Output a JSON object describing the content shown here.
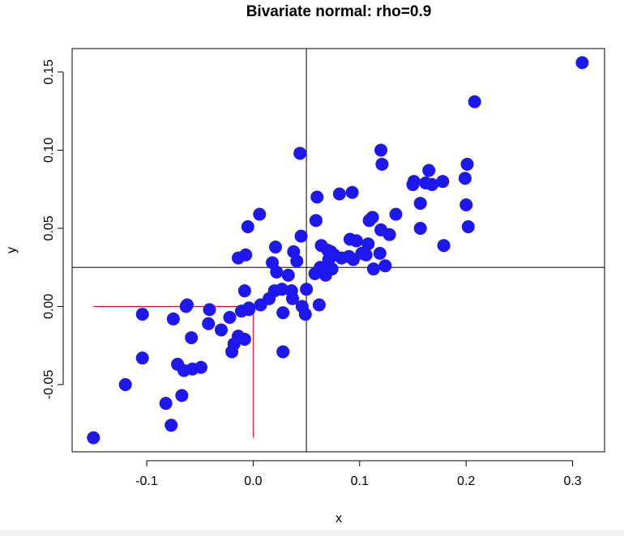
{
  "chart_data": {
    "type": "scatter",
    "title": "Bivariate normal: rho=0.9",
    "xlabel": "x",
    "ylabel": "y",
    "xlim": [
      -0.17,
      0.33
    ],
    "ylim": [
      -0.093,
      0.165
    ],
    "xticks": [
      "-0.1",
      "0.0",
      "0.1",
      "0.2",
      "0.3"
    ],
    "xtick_values": [
      -0.1,
      0.0,
      0.1,
      0.2,
      0.3
    ],
    "yticks": [
      "-0.05",
      "0.00",
      "0.05",
      "0.10",
      "0.15"
    ],
    "ytick_values": [
      -0.05,
      0.0,
      0.05,
      0.1,
      0.15
    ],
    "grid": false,
    "point_color": "#1f17f0",
    "reference_lines": {
      "vertical_black_x": 0.05,
      "horizontal_black_y": 0.025,
      "red_line_color": "#e8001c",
      "red_horizontal": {
        "y": 0.0,
        "x_from": -0.15,
        "x_to": 0.0
      },
      "red_vertical": {
        "x": 0.0,
        "y_from": 0.0,
        "y_to": -0.084
      }
    },
    "points": [
      [
        -0.15,
        -0.084
      ],
      [
        -0.12,
        -0.05
      ],
      [
        -0.104,
        -0.033
      ],
      [
        -0.104,
        -0.005
      ],
      [
        -0.082,
        -0.062
      ],
      [
        -0.077,
        -0.076
      ],
      [
        -0.075,
        -0.008
      ],
      [
        -0.071,
        -0.037
      ],
      [
        -0.067,
        -0.057
      ],
      [
        -0.065,
        -0.041
      ],
      [
        -0.063,
        0.0
      ],
      [
        -0.062,
        0.001
      ],
      [
        -0.058,
        -0.02
      ],
      [
        -0.057,
        -0.04
      ],
      [
        -0.049,
        -0.039
      ],
      [
        -0.042,
        -0.011
      ],
      [
        -0.041,
        -0.002
      ],
      [
        -0.03,
        -0.015
      ],
      [
        -0.022,
        -0.007
      ],
      [
        -0.02,
        -0.029
      ],
      [
        -0.018,
        -0.024
      ],
      [
        -0.014,
        -0.019
      ],
      [
        -0.014,
        0.031
      ],
      [
        -0.011,
        -0.003
      ],
      [
        -0.008,
        -0.021
      ],
      [
        -0.008,
        0.01
      ],
      [
        -0.007,
        0.033
      ],
      [
        -0.005,
        0.051
      ],
      [
        -0.004,
        -0.001
      ],
      [
        -0.004,
        -0.002
      ],
      [
        0.006,
        0.059
      ],
      [
        0.007,
        0.001
      ],
      [
        0.015,
        0.005
      ],
      [
        0.018,
        0.028
      ],
      [
        0.02,
        0.01
      ],
      [
        0.021,
        0.038
      ],
      [
        0.022,
        0.022
      ],
      [
        0.027,
        0.011
      ],
      [
        0.028,
        -0.004
      ],
      [
        0.028,
        -0.029
      ],
      [
        0.033,
        0.02
      ],
      [
        0.036,
        0.01
      ],
      [
        0.037,
        0.005
      ],
      [
        0.038,
        0.035
      ],
      [
        0.041,
        0.029
      ],
      [
        0.044,
        0.098
      ],
      [
        0.045,
        0.045
      ],
      [
        0.046,
        0.0
      ],
      [
        0.049,
        -0.005
      ],
      [
        0.05,
        0.011
      ],
      [
        0.058,
        0.021
      ],
      [
        0.059,
        0.055
      ],
      [
        0.06,
        0.07
      ],
      [
        0.062,
        0.001
      ],
      [
        0.063,
        0.025
      ],
      [
        0.064,
        0.039
      ],
      [
        0.068,
        0.02
      ],
      [
        0.07,
        0.036
      ],
      [
        0.071,
        0.03
      ],
      [
        0.073,
        0.035
      ],
      [
        0.074,
        0.024
      ],
      [
        0.076,
        0.033
      ],
      [
        0.081,
        0.072
      ],
      [
        0.083,
        0.031
      ],
      [
        0.09,
        0.032
      ],
      [
        0.091,
        0.043
      ],
      [
        0.093,
        0.073
      ],
      [
        0.094,
        0.03
      ],
      [
        0.097,
        0.042
      ],
      [
        0.102,
        0.034
      ],
      [
        0.106,
        0.033
      ],
      [
        0.108,
        0.04
      ],
      [
        0.109,
        0.055
      ],
      [
        0.112,
        0.057
      ],
      [
        0.113,
        0.024
      ],
      [
        0.119,
        0.034
      ],
      [
        0.12,
        0.049
      ],
      [
        0.12,
        0.1
      ],
      [
        0.121,
        0.091
      ],
      [
        0.124,
        0.026
      ],
      [
        0.128,
        0.046
      ],
      [
        0.134,
        0.059
      ],
      [
        0.15,
        0.078
      ],
      [
        0.151,
        0.08
      ],
      [
        0.157,
        0.066
      ],
      [
        0.157,
        0.05
      ],
      [
        0.162,
        0.079
      ],
      [
        0.165,
        0.087
      ],
      [
        0.168,
        0.078
      ],
      [
        0.178,
        0.08
      ],
      [
        0.179,
        0.039
      ],
      [
        0.199,
        0.082
      ],
      [
        0.2,
        0.065
      ],
      [
        0.201,
        0.091
      ],
      [
        0.202,
        0.051
      ],
      [
        0.208,
        0.131
      ],
      [
        0.309,
        0.156
      ]
    ]
  }
}
